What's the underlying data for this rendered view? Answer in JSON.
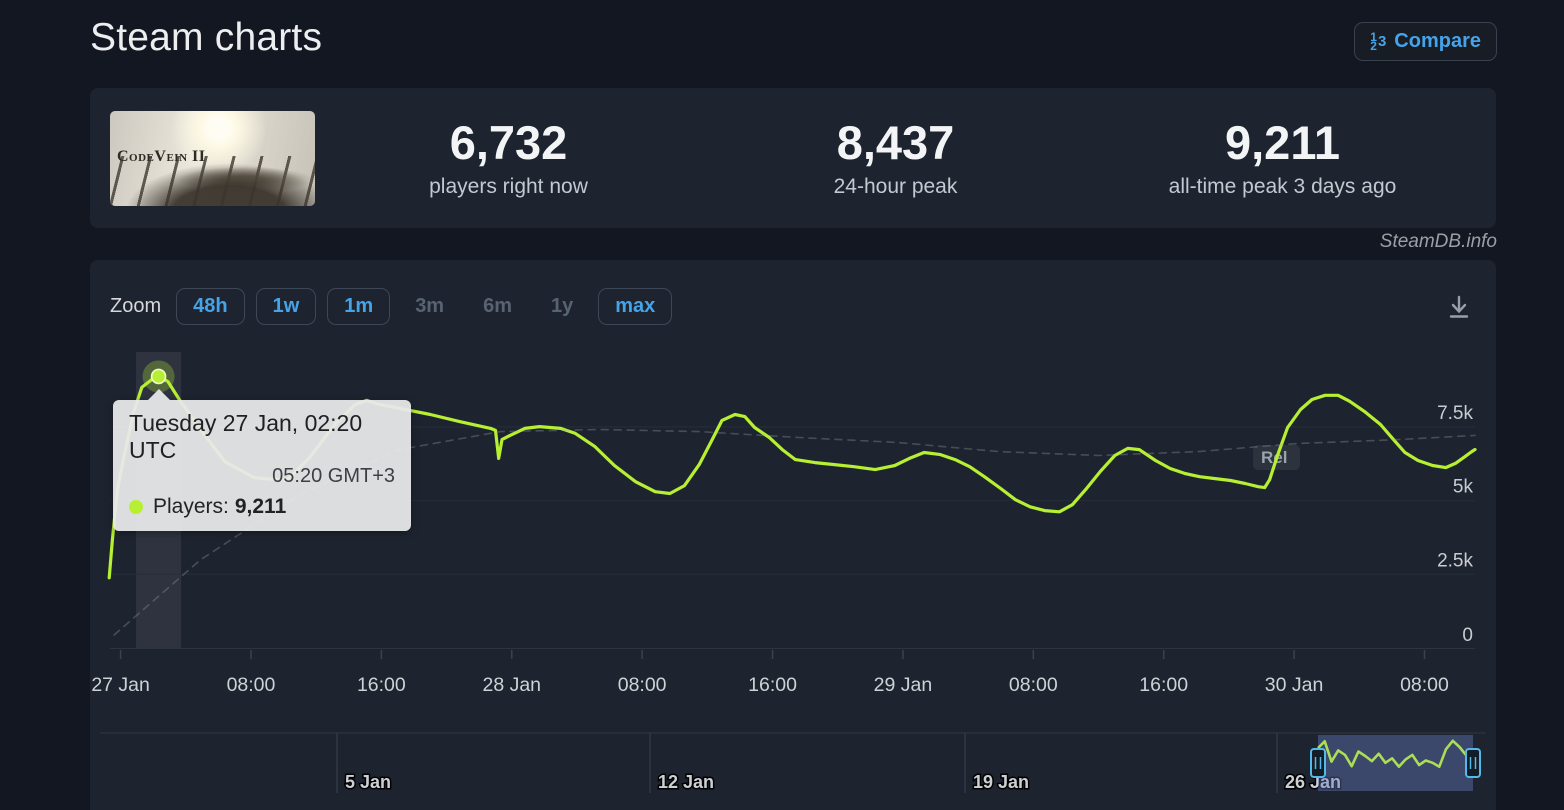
{
  "header": {
    "title": "Steam charts",
    "compare_label": "Compare"
  },
  "stats": {
    "game_title": "CodeVein II",
    "players_now": "6,732",
    "players_now_label": "players right now",
    "peak_24h": "8,437",
    "peak_24h_label": "24-hour peak",
    "peak_alltime": "9,211",
    "peak_alltime_label": "all-time peak 3 days ago"
  },
  "watermark": "SteamDB.info",
  "toolbar": {
    "zoom_label": "Zoom",
    "buttons": [
      {
        "label": "48h",
        "state": "enabled"
      },
      {
        "label": "1w",
        "state": "enabled"
      },
      {
        "label": "1m",
        "state": "enabled"
      },
      {
        "label": "3m",
        "state": "disabled"
      },
      {
        "label": "6m",
        "state": "disabled"
      },
      {
        "label": "1y",
        "state": "disabled"
      },
      {
        "label": "max",
        "state": "enabled"
      }
    ],
    "download_icon": "download-chart"
  },
  "tooltip": {
    "date_line": "Tuesday 27 Jan, 02:20 UTC",
    "local_time": "05:20 GMT+3",
    "series_label": "Players:",
    "value": "9,211"
  },
  "colors": {
    "page_bg": "#131721",
    "panel_bg": "#1e242f",
    "accent_blue": "#45a4e9",
    "line_green": "#b7ef32",
    "tooltip_bg": "#e7e8e9",
    "axis_text": "#c9cdd2",
    "navigator_selection": "rgba(100,122,190,0.42)",
    "handle_blue": "#54b9e8"
  },
  "chart_data": {
    "type": "line",
    "title": "",
    "xlabel": "",
    "ylabel": "",
    "grid": true,
    "legend": "none (tooltip only)",
    "y_max": 10040,
    "y_gridlines": [
      2500,
      5000,
      7500
    ],
    "y_tick_labels": [
      "2.5k",
      "5k",
      "7.5k"
    ],
    "y_zero_label": "0",
    "x_range_hours": [
      -0.65,
      83.1
    ],
    "x_tick_hours": [
      0,
      8,
      16,
      24,
      32,
      40,
      48,
      56,
      64,
      72,
      80
    ],
    "x_tick_labels": [
      "27 Jan",
      "08:00",
      "16:00",
      "28 Jan",
      "08:00",
      "16:00",
      "29 Jan",
      "08:00",
      "16:00",
      "30 Jan",
      "08:00"
    ],
    "hover_point": {
      "t": 2.33,
      "players": 9211
    },
    "annotation_flag": "Rel",
    "series": [
      {
        "name": "Players",
        "color": "#b7ef32",
        "points": [
          [
            -0.7,
            2380
          ],
          [
            -0.5,
            3670
          ],
          [
            -0.2,
            5370
          ],
          [
            0.3,
            6730
          ],
          [
            0.8,
            7990
          ],
          [
            1.3,
            8840
          ],
          [
            1.9,
            9100
          ],
          [
            2.33,
            9211
          ],
          [
            2.9,
            9040
          ],
          [
            3.6,
            8430
          ],
          [
            4.9,
            7410
          ],
          [
            6.4,
            6320
          ],
          [
            8.2,
            5780
          ],
          [
            10.2,
            5680
          ],
          [
            11.6,
            6460
          ],
          [
            13.2,
            7620
          ],
          [
            14.4,
            8260
          ],
          [
            15.1,
            8400
          ],
          [
            15.9,
            8260
          ],
          [
            17.1,
            8130
          ],
          [
            19.0,
            7920
          ],
          [
            20.8,
            7680
          ],
          [
            22.7,
            7450
          ],
          [
            23.0,
            7380
          ],
          [
            23.2,
            6430
          ],
          [
            23.4,
            7070
          ],
          [
            23.9,
            7210
          ],
          [
            24.8,
            7450
          ],
          [
            25.7,
            7510
          ],
          [
            27.0,
            7450
          ],
          [
            27.9,
            7280
          ],
          [
            29.1,
            6830
          ],
          [
            30.3,
            6190
          ],
          [
            31.6,
            5640
          ],
          [
            32.8,
            5300
          ],
          [
            33.7,
            5240
          ],
          [
            34.6,
            5510
          ],
          [
            35.5,
            6220
          ],
          [
            36.3,
            7070
          ],
          [
            36.9,
            7720
          ],
          [
            37.7,
            7920
          ],
          [
            38.3,
            7850
          ],
          [
            38.9,
            7480
          ],
          [
            39.8,
            7140
          ],
          [
            40.6,
            6730
          ],
          [
            41.4,
            6390
          ],
          [
            42.6,
            6290
          ],
          [
            43.8,
            6220
          ],
          [
            45.0,
            6150
          ],
          [
            46.3,
            6050
          ],
          [
            47.5,
            6190
          ],
          [
            48.4,
            6430
          ],
          [
            49.3,
            6630
          ],
          [
            50.3,
            6560
          ],
          [
            51.2,
            6390
          ],
          [
            52.1,
            6150
          ],
          [
            53.0,
            5810
          ],
          [
            54.0,
            5410
          ],
          [
            54.9,
            5030
          ],
          [
            55.8,
            4790
          ],
          [
            56.7,
            4660
          ],
          [
            57.6,
            4620
          ],
          [
            58.4,
            4860
          ],
          [
            59.2,
            5370
          ],
          [
            60.1,
            5980
          ],
          [
            61.0,
            6530
          ],
          [
            61.8,
            6770
          ],
          [
            62.5,
            6730
          ],
          [
            63.5,
            6360
          ],
          [
            64.4,
            6090
          ],
          [
            65.3,
            5920
          ],
          [
            66.2,
            5810
          ],
          [
            67.1,
            5750
          ],
          [
            68.1,
            5680
          ],
          [
            69.0,
            5580
          ],
          [
            69.8,
            5470
          ],
          [
            70.2,
            5440
          ],
          [
            70.5,
            5710
          ],
          [
            71.0,
            6560
          ],
          [
            71.6,
            7480
          ],
          [
            72.4,
            8090
          ],
          [
            73.1,
            8430
          ],
          [
            73.9,
            8570
          ],
          [
            74.7,
            8570
          ],
          [
            75.4,
            8370
          ],
          [
            76.3,
            8030
          ],
          [
            77.3,
            7580
          ],
          [
            78.1,
            7070
          ],
          [
            78.8,
            6630
          ],
          [
            79.6,
            6360
          ],
          [
            80.5,
            6190
          ],
          [
            81.3,
            6120
          ],
          [
            81.9,
            6260
          ],
          [
            82.5,
            6500
          ],
          [
            82.9,
            6660
          ],
          [
            83.1,
            6732
          ]
        ]
      },
      {
        "name": "trend-dashed",
        "color": "rgba(155,165,180,0.32)",
        "dashed": true,
        "points": [
          [
            -0.4,
            440
          ],
          [
            4.9,
            2990
          ],
          [
            11.0,
            5200
          ],
          [
            17.1,
            6730
          ],
          [
            23.3,
            7340
          ],
          [
            29.4,
            7410
          ],
          [
            35.5,
            7340
          ],
          [
            41.6,
            7140
          ],
          [
            47.7,
            6970
          ],
          [
            53.9,
            6660
          ],
          [
            60.0,
            6530
          ],
          [
            66.1,
            6660
          ],
          [
            72.3,
            6940
          ],
          [
            78.4,
            7070
          ],
          [
            83.1,
            7210
          ]
        ]
      }
    ],
    "navigator": {
      "week_labels": [
        "5 Jan",
        "12 Jan",
        "19 Jan",
        "26 Jan"
      ],
      "spark_values": [
        7600,
        8800,
        5200,
        7200,
        6400,
        4400,
        7000,
        6200,
        5300,
        6600,
        5000,
        5800,
        4300,
        5600,
        6400,
        4600,
        5400,
        5000,
        4300,
        7400,
        8900,
        7800,
        6300,
        6732
      ]
    }
  }
}
